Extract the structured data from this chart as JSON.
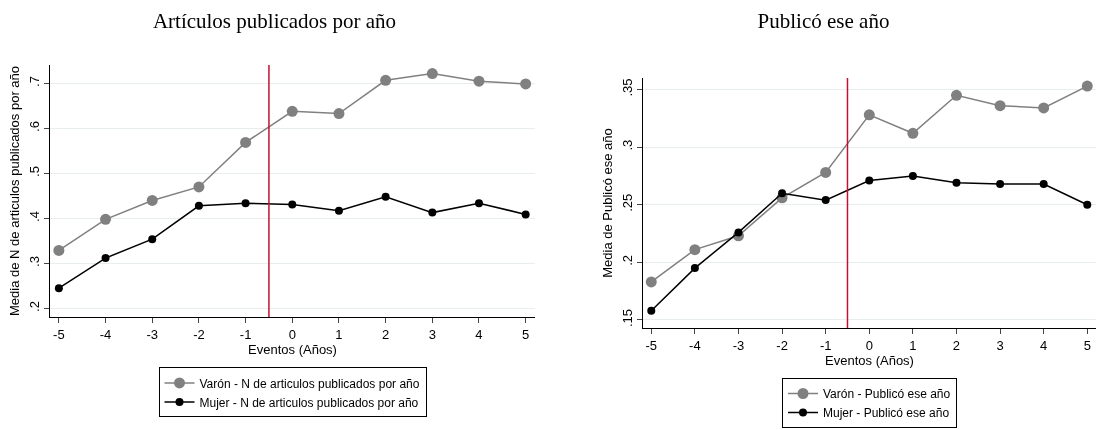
{
  "chart_data": [
    {
      "type": "line",
      "title": "Artículos publicados por año",
      "xlabel": "Eventos (Años)",
      "ylabel": "Media de N de articulos publicados por año",
      "x": [
        -5,
        -4,
        -3,
        -2,
        -1,
        0,
        1,
        2,
        3,
        4,
        5
      ],
      "series": [
        {
          "name": "Varón - N de articulos publicados por año",
          "color": "#808080",
          "values": [
            0.329,
            0.398,
            0.44,
            0.47,
            0.569,
            0.638,
            0.633,
            0.707,
            0.722,
            0.705,
            0.699
          ]
        },
        {
          "name": "Mujer - N de articulos publicados por año",
          "color": "#000000",
          "values": [
            0.245,
            0.312,
            0.354,
            0.428,
            0.434,
            0.431,
            0.417,
            0.448,
            0.413,
            0.434,
            0.409
          ]
        }
      ],
      "xlim": [
        -5.19,
        5.2
      ],
      "xticks": [
        -5,
        -4,
        -3,
        -2,
        -1,
        0,
        1,
        2,
        3,
        4,
        5
      ],
      "ylim": [
        0.181,
        0.741
      ],
      "yticks": [
        {
          "value": 0.2,
          "label": ".2"
        },
        {
          "value": 0.3,
          "label": ".3"
        },
        {
          "value": 0.4,
          "label": ".4"
        },
        {
          "value": 0.5,
          "label": ".5"
        },
        {
          "value": 0.6,
          "label": ".6"
        },
        {
          "value": 0.7,
          "label": ".7"
        }
      ],
      "ref_lines": [
        {
          "axis": "x",
          "value": -0.5,
          "color": "#c8102e"
        }
      ],
      "grid": "y",
      "legend": "bottom",
      "marker": "circle",
      "line_style": "solid"
    },
    {
      "type": "line",
      "title": "Publicó ese año",
      "xlabel": "Eventos (Años)",
      "ylabel": "Media de Publicó ese año",
      "x": [
        -5,
        -4,
        -3,
        -2,
        -1,
        0,
        1,
        2,
        3,
        4,
        5
      ],
      "series": [
        {
          "name": "Varón - Publicó ese año",
          "color": "#808080",
          "values": [
            0.183,
            0.211,
            0.223,
            0.256,
            0.278,
            0.328,
            0.312,
            0.345,
            0.336,
            0.334,
            0.353
          ]
        },
        {
          "name": "Mujer - Publicó ese año",
          "color": "#000000",
          "values": [
            0.158,
            0.195,
            0.226,
            0.26,
            0.254,
            0.271,
            0.275,
            0.269,
            0.268,
            0.268,
            0.25
          ]
        }
      ],
      "xlim": [
        -5.19,
        5.2
      ],
      "xticks": [
        -5,
        -4,
        -3,
        -2,
        -1,
        0,
        1,
        2,
        3,
        4,
        5
      ],
      "ylim": [
        0.143,
        0.36
      ],
      "yticks": [
        {
          "value": 0.15,
          "label": ".15"
        },
        {
          "value": 0.2,
          "label": ".2"
        },
        {
          "value": 0.25,
          "label": ".25"
        },
        {
          "value": 0.3,
          "label": ".3"
        },
        {
          "value": 0.35,
          "label": ".35"
        }
      ],
      "ref_lines": [
        {
          "axis": "x",
          "value": -0.5,
          "color": "#c8102e"
        }
      ],
      "grid": "y",
      "legend": "bottom",
      "marker": "circle",
      "line_style": "solid"
    }
  ]
}
